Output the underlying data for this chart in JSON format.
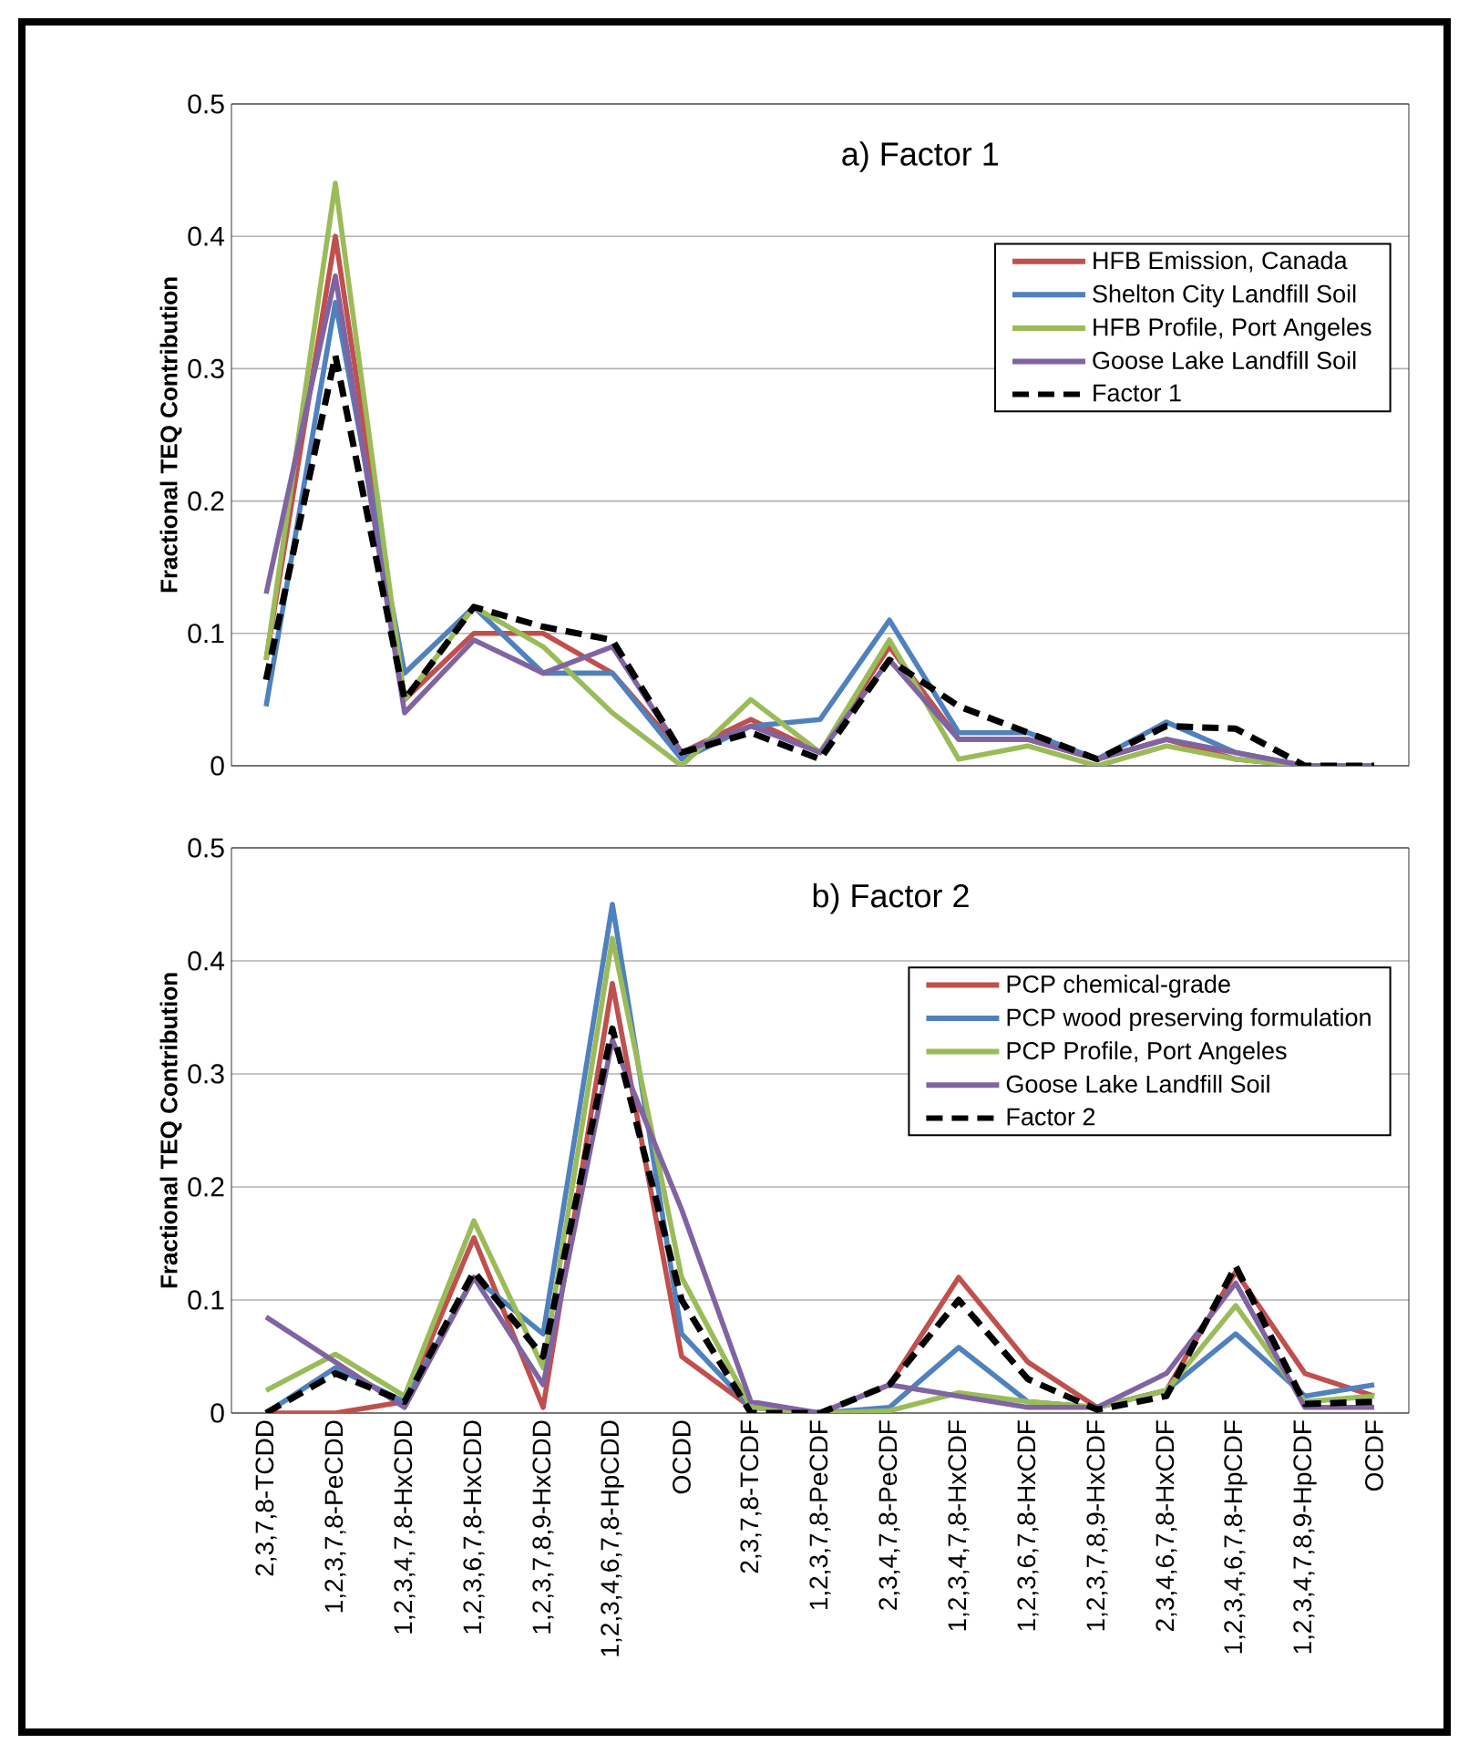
{
  "chart_data": [
    {
      "type": "line",
      "title": "a) Factor 1",
      "ylabel": "Fractional TEQ Contribution",
      "categories": [
        null,
        null,
        null,
        null,
        null,
        null,
        null,
        null,
        null,
        null,
        null,
        null,
        null,
        null,
        null,
        null,
        null
      ],
      "tick_labels": "y",
      "ylim": [
        0,
        0.5
      ],
      "yticks": [
        0,
        0.1,
        0.2,
        0.3,
        0.4,
        0.5
      ],
      "grid": "y",
      "legend": "top right",
      "series": [
        {
          "name": "HFB Emission, Canada",
          "color": "#c0504d",
          "values": [
            0.08,
            0.4,
            0.05,
            0.1,
            0.1,
            0.07,
            0.01,
            0.035,
            0.01,
            0.09,
            0.02,
            0.02,
            0.005,
            0.02,
            0.005,
            0,
            0
          ]
        },
        {
          "name": "Shelton City Landfill Soil",
          "color": "#4f81bd",
          "values": [
            0.045,
            0.35,
            0.07,
            0.12,
            0.07,
            0.07,
            0.005,
            0.03,
            0.035,
            0.11,
            0.025,
            0.025,
            0.005,
            0.033,
            0.01,
            0,
            0
          ]
        },
        {
          "name": "HFB Profile, Port Angeles",
          "color": "#9bbb59",
          "values": [
            0.08,
            0.44,
            0.05,
            0.12,
            0.09,
            0.04,
            0,
            0.05,
            0.01,
            0.095,
            0.005,
            0.015,
            0,
            0.015,
            0.005,
            0,
            0
          ]
        },
        {
          "name": "Goose Lake Landfill Soil",
          "color": "#8064a2",
          "values": [
            0.13,
            0.37,
            0.04,
            0.095,
            0.07,
            0.09,
            0.01,
            0.03,
            0.01,
            0.08,
            0.02,
            0.02,
            0.005,
            0.02,
            0.01,
            0,
            0
          ]
        },
        {
          "name": "Factor 1",
          "color": "#000000",
          "line_style": "dashed",
          "values": [
            0.065,
            0.31,
            0.05,
            0.12,
            0.105,
            0.095,
            0.01,
            0.025,
            0.005,
            0.08,
            0.045,
            0.025,
            0.005,
            0.03,
            0.028,
            0,
            0
          ]
        }
      ]
    },
    {
      "type": "line",
      "title": "b) Factor 2",
      "ylabel": "Fractional TEQ Contribution",
      "categories": [
        "2,3,7,8-TCDD",
        "1,2,3,7,8-PeCDD",
        "1,2,3,4,7,8-HxCDD",
        "1,2,3,6,7,8-HxCDD",
        "1,2,3,7,8,9-HxCDD",
        "1,2,3,4,6,7,8-HpCDD",
        "OCDD",
        "2,3,7,8-TCDF",
        "1,2,3,7,8-PeCDF",
        "2,3,4,7,8-PeCDF",
        "1,2,3,4,7,8-HxCDF",
        "1,2,3,6,7,8-HxCDF",
        "1,2,3,7,8,9-HxCDF",
        "2,3,4,6,7,8-HxCDF",
        "1,2,3,4,6,7,8-HpCDF",
        "1,2,3,4,7,8,9-HpCDF",
        "OCDF"
      ],
      "ylim": [
        0,
        0.5
      ],
      "yticks": [
        0,
        0.1,
        0.2,
        0.3,
        0.4,
        0.5
      ],
      "grid": "y",
      "legend": "top right",
      "series": [
        {
          "name": "PCP chemical-grade",
          "color": "#c0504d",
          "values": [
            0,
            0,
            0.01,
            0.155,
            0.005,
            0.38,
            0.05,
            0.005,
            0,
            0.025,
            0.12,
            0.045,
            0.005,
            0.02,
            0.125,
            0.035,
            0.015
          ]
        },
        {
          "name": "PCP wood preserving formulation",
          "color": "#4f81bd",
          "values": [
            0,
            0.04,
            0.01,
            0.12,
            0.07,
            0.45,
            0.07,
            0.005,
            0,
            0.005,
            0.058,
            0.01,
            0.005,
            0.02,
            0.07,
            0.015,
            0.025
          ]
        },
        {
          "name": "PCP Profile, Port Angeles",
          "color": "#9bbb59",
          "values": [
            0.02,
            0.052,
            0.015,
            0.17,
            0.04,
            0.42,
            0.12,
            0.005,
            0,
            0.002,
            0.018,
            0.01,
            0.005,
            0.02,
            0.095,
            0.01,
            0.015
          ]
        },
        {
          "name": "Goose Lake Landfill Soil",
          "color": "#8064a2",
          "values": [
            0.085,
            0.045,
            0.005,
            0.12,
            0.025,
            0.33,
            0.18,
            0.01,
            0,
            0.025,
            0.015,
            0.005,
            0.005,
            0.035,
            0.115,
            0.005,
            0.005
          ]
        },
        {
          "name": "Factor 2",
          "color": "#000000",
          "line_style": "dashed",
          "values": [
            0,
            0.035,
            0.01,
            0.125,
            0.05,
            0.34,
            0.1,
            0,
            0,
            0.025,
            0.1,
            0.03,
            0.003,
            0.015,
            0.13,
            0.008,
            0.01
          ]
        }
      ]
    }
  ]
}
